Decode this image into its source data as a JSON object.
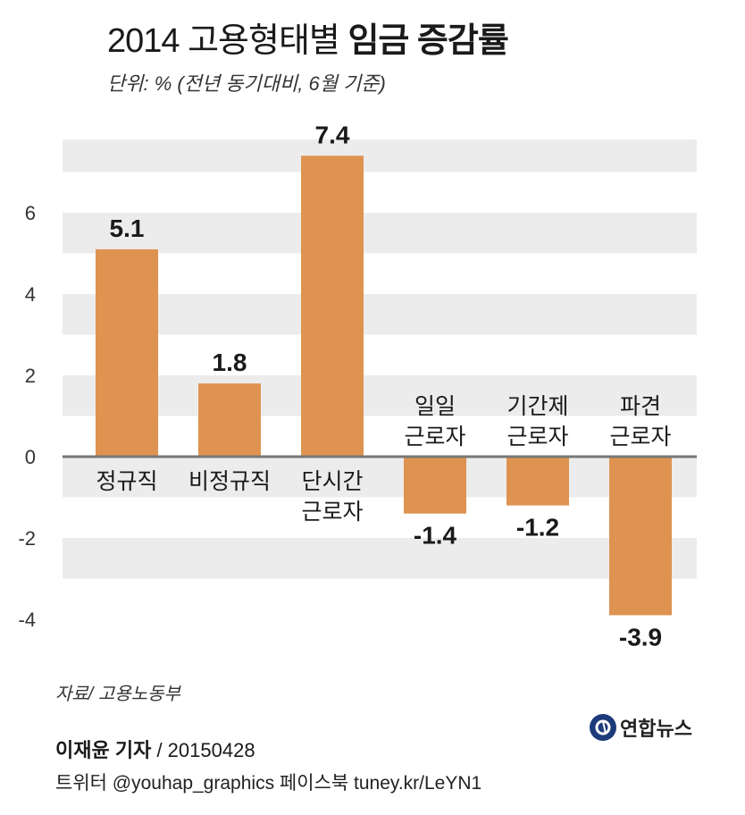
{
  "header": {
    "title_light": "2014 고용형태별 ",
    "title_bold": "임금 증감률",
    "subtitle": "단위: % (전년 동기대비, 6월 기준)"
  },
  "chart_data": {
    "type": "bar",
    "title": "2014 고용형태별 임금 증감률",
    "ylabel": "%",
    "ylim": [
      -4,
      7.6
    ],
    "yticks": [
      6,
      4,
      2,
      0,
      -2,
      -4
    ],
    "grid": "alternating bands",
    "categories": [
      [
        "정규직"
      ],
      [
        "비정규직"
      ],
      [
        "단시간",
        "근로자"
      ],
      [
        "일일",
        "근로자"
      ],
      [
        "기간제",
        "근로자"
      ],
      [
        "파견",
        "근로자"
      ]
    ],
    "values": [
      5.1,
      1.8,
      7.4,
      -1.4,
      -1.2,
      -3.9
    ],
    "value_labels": [
      "5.1",
      "1.8",
      "7.4",
      "-1.4",
      "-1.2",
      "-3.9"
    ],
    "bar_color": "#de9350",
    "band_color": "#ececec",
    "axis_color": "#777777"
  },
  "footer": {
    "source": "자료/ 고용노동부",
    "reporter_name": "이재윤 기자",
    "reporter_date": " / 20150428",
    "social": "트위터 @youhap_graphics 페이스북 tuney.kr/LeYN1",
    "logo_text": "연합뉴스"
  }
}
